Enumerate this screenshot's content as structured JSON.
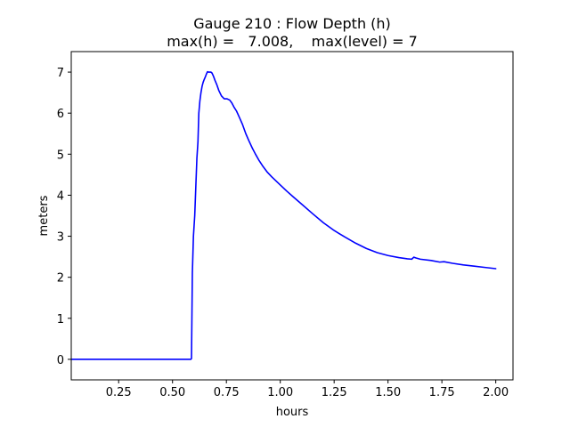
{
  "chart_data": {
    "type": "line",
    "title": "Gauge 210 : Flow Depth (h)",
    "subtitle": "max(h) =   7.008,    max(level) = 7",
    "xlabel": "hours",
    "ylabel": "meters",
    "xlim": [
      0.03,
      2.08
    ],
    "ylim": [
      -0.5,
      7.5
    ],
    "xticks": [
      0.25,
      0.5,
      0.75,
      1.0,
      1.25,
      1.5,
      1.75,
      2.0
    ],
    "xtick_labels": [
      "0.25",
      "0.50",
      "0.75",
      "1.00",
      "1.25",
      "1.50",
      "1.75",
      "2.00"
    ],
    "yticks": [
      0,
      1,
      2,
      3,
      4,
      5,
      6,
      7
    ],
    "ytick_labels": [
      "0",
      "1",
      "2",
      "3",
      "4",
      "5",
      "6",
      "7"
    ],
    "grid": false,
    "series": [
      {
        "color": "#0000ff",
        "x": [
          0.03,
          0.2,
          0.4,
          0.55,
          0.585,
          0.588,
          0.592,
          0.597,
          0.603,
          0.608,
          0.613,
          0.618,
          0.622,
          0.627,
          0.632,
          0.637,
          0.642,
          0.647,
          0.652,
          0.657,
          0.662,
          0.667,
          0.672,
          0.678,
          0.683,
          0.69,
          0.697,
          0.705,
          0.715,
          0.727,
          0.74,
          0.752,
          0.765,
          0.775,
          0.785,
          0.797,
          0.81,
          0.825,
          0.84,
          0.855,
          0.87,
          0.885,
          0.9,
          0.92,
          0.94,
          0.96,
          0.98,
          1.0,
          1.03,
          1.06,
          1.1,
          1.15,
          1.2,
          1.25,
          1.3,
          1.35,
          1.4,
          1.45,
          1.5,
          1.55,
          1.59,
          1.61,
          1.62,
          1.63,
          1.65,
          1.7,
          1.74,
          1.76,
          1.8,
          1.85,
          1.9,
          1.95,
          2.0
        ],
        "y": [
          0.0,
          0.0,
          0.0,
          0.0,
          0.0,
          0.02,
          2.1,
          3.0,
          3.5,
          4.2,
          4.9,
          5.3,
          6.0,
          6.3,
          6.5,
          6.65,
          6.75,
          6.82,
          6.88,
          6.95,
          7.008,
          7.0,
          7.0,
          7.0,
          6.98,
          6.9,
          6.8,
          6.7,
          6.55,
          6.42,
          6.35,
          6.35,
          6.32,
          6.25,
          6.15,
          6.05,
          5.9,
          5.72,
          5.5,
          5.32,
          5.15,
          5.0,
          4.86,
          4.7,
          4.56,
          4.45,
          4.35,
          4.25,
          4.1,
          3.96,
          3.78,
          3.55,
          3.33,
          3.14,
          2.98,
          2.83,
          2.7,
          2.6,
          2.53,
          2.48,
          2.45,
          2.44,
          2.49,
          2.47,
          2.44,
          2.41,
          2.37,
          2.38,
          2.34,
          2.3,
          2.27,
          2.24,
          2.21
        ]
      }
    ]
  }
}
